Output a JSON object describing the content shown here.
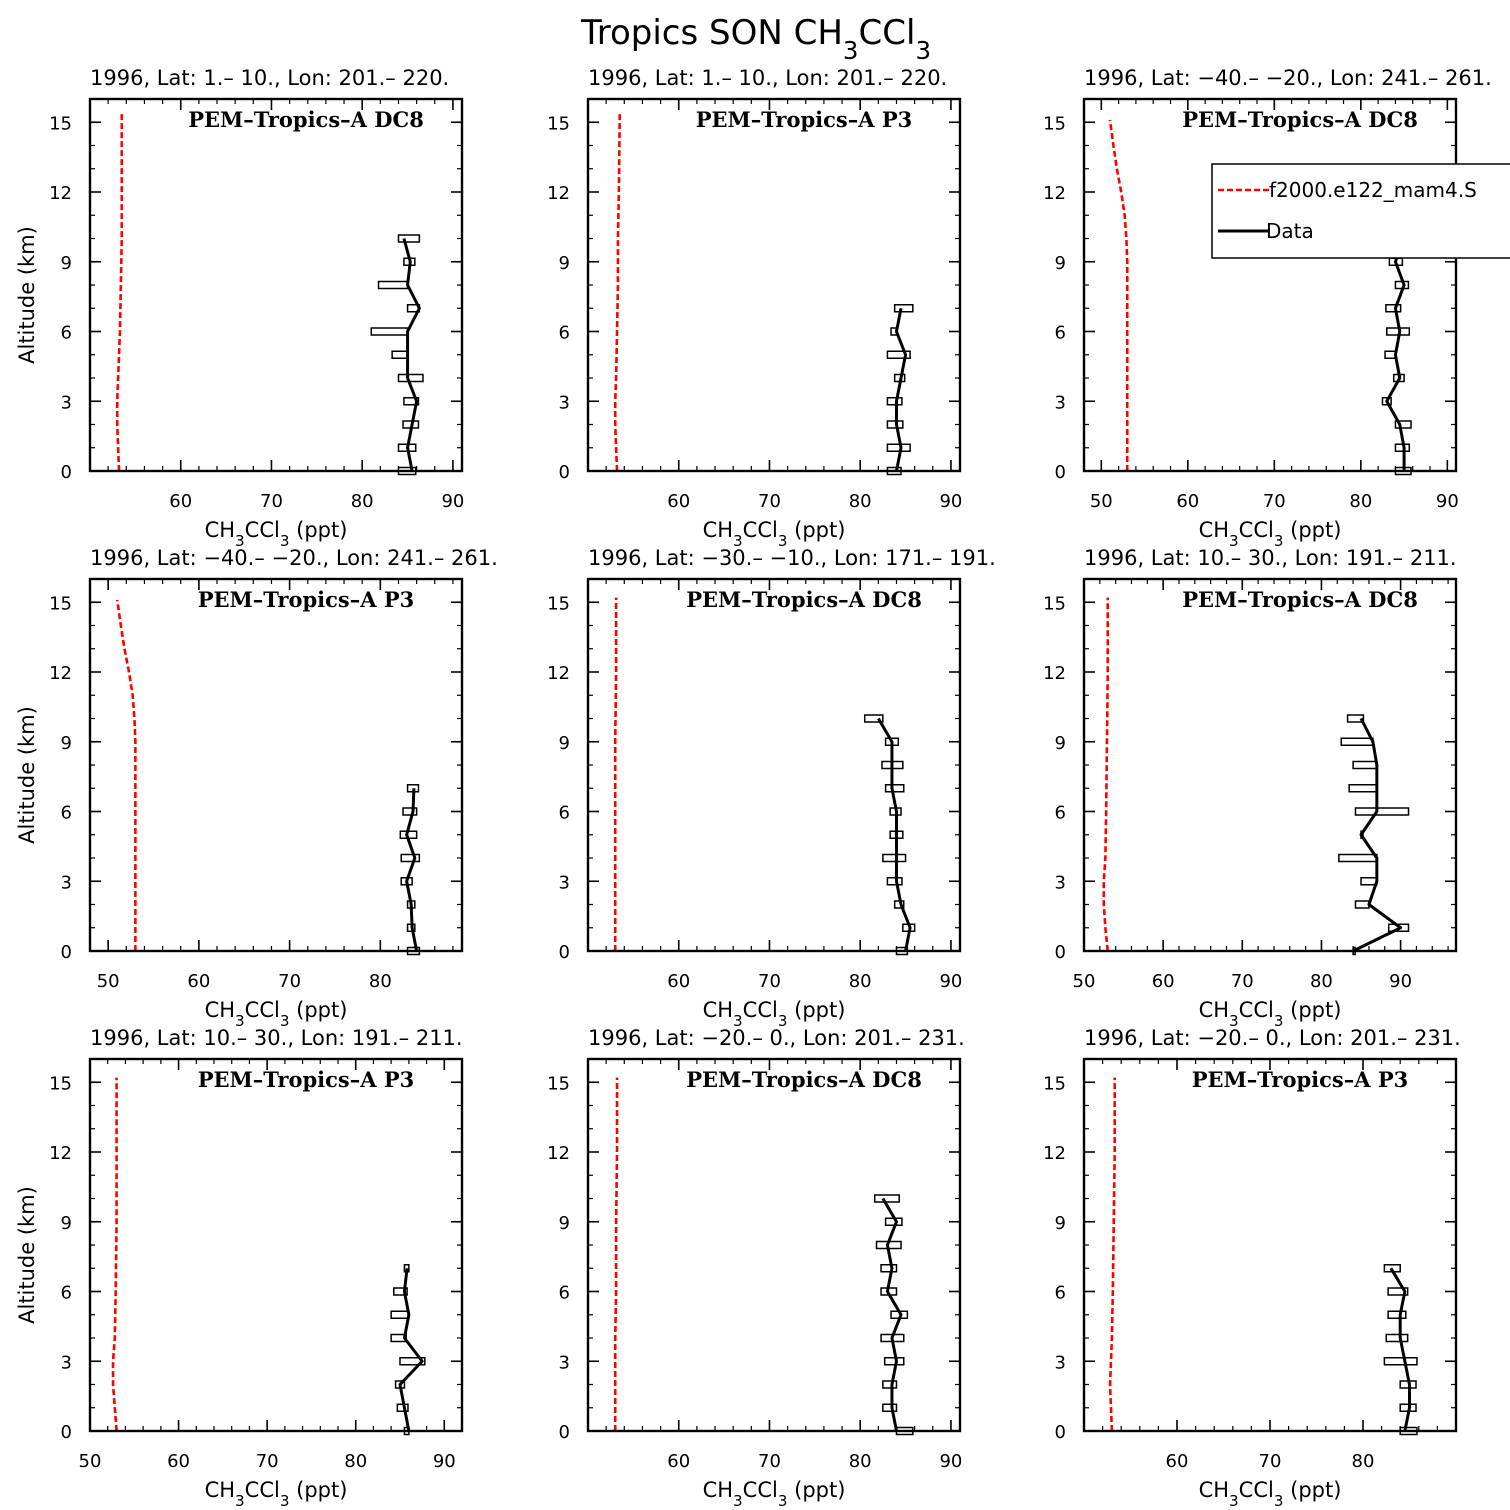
{
  "title": "Tropics SON CH3CCl3",
  "chart_data": {
    "type": "line",
    "legend": {
      "placement": "top-right",
      "entries": [
        "f2000.e122_mam4.S",
        "Data"
      ],
      "colors": [
        "#ff0000",
        "#000000"
      ]
    },
    "panels": [
      {
        "title": "1996, Lat: 1.– 10., Lon: 201.– 220.",
        "campaign": "PEM–Tropics–A DC8",
        "xlim": [
          50,
          91
        ],
        "xticks": [
          60,
          70,
          80,
          90
        ],
        "xlabel": "CH3CCl3 (ppt)",
        "ylabel": "Altitude (km)",
        "ylim": [
          0,
          16
        ],
        "yticks": [
          0,
          3,
          6,
          9,
          12,
          15
        ],
        "model": {
          "alt": [
            0,
            1,
            2,
            3,
            4,
            5,
            6,
            8,
            10,
            12,
            15.4
          ],
          "val": [
            53.2,
            53.1,
            53.0,
            53.0,
            53.1,
            53.2,
            53.3,
            53.4,
            53.5,
            53.5,
            53.5
          ]
        },
        "obs": {
          "alt": [
            0,
            1,
            2,
            3,
            4,
            5,
            6,
            7,
            8,
            9,
            10
          ],
          "val": [
            85.5,
            85.0,
            85.5,
            86.0,
            85.0,
            85.0,
            85.0,
            86.3,
            85.0,
            85.3,
            84.6
          ],
          "lo": [
            84.0,
            84.0,
            84.5,
            84.6,
            84.0,
            83.3,
            81.0,
            85.0,
            81.8,
            84.6,
            84.0
          ],
          "hi": [
            85.9,
            85.9,
            86.2,
            86.2,
            86.7,
            85.0,
            85.0,
            86.3,
            85.0,
            85.8,
            86.3
          ]
        }
      },
      {
        "title": "1996, Lat: 1.– 10., Lon: 201.– 220.",
        "campaign": "PEM–Tropics–A P3",
        "xlim": [
          50,
          91
        ],
        "xticks": [
          60,
          70,
          80,
          90
        ],
        "xlabel": "CH3CCl3 (ppt)",
        "ylabel": "",
        "ylim": [
          0,
          16
        ],
        "yticks": [
          0,
          3,
          6,
          9,
          12,
          15
        ],
        "model": {
          "alt": [
            0,
            1,
            2,
            3,
            4,
            6,
            8,
            10,
            12,
            15.4
          ],
          "val": [
            53.2,
            53.1,
            53.0,
            53.0,
            53.1,
            53.2,
            53.3,
            53.3,
            53.4,
            53.5
          ]
        },
        "obs": {
          "alt": [
            0,
            1,
            2,
            3,
            4,
            5,
            6,
            7
          ],
          "val": [
            84.0,
            84.5,
            84.0,
            84.0,
            84.5,
            85.0,
            84.0,
            84.5
          ],
          "lo": [
            83.0,
            83.0,
            83.0,
            83.0,
            83.8,
            83.0,
            83.4,
            83.8
          ],
          "hi": [
            84.5,
            85.5,
            84.7,
            84.6,
            84.9,
            85.5,
            84.0,
            85.8
          ]
        }
      },
      {
        "title": "1996, Lat: −40.– −20., Lon: 241.– 261.",
        "campaign": "PEM–Tropics–A DC8",
        "xlim": [
          48,
          91
        ],
        "xticks": [
          50,
          60,
          70,
          80,
          90
        ],
        "xlabel": "CH3CCl3 (ppt)",
        "ylabel": "",
        "ylim": [
          0,
          16
        ],
        "yticks": [
          0,
          3,
          6,
          9,
          12,
          15
        ],
        "model": {
          "alt": [
            0,
            3,
            6,
            9,
            10,
            11,
            12,
            13,
            14,
            15.1
          ],
          "val": [
            53.0,
            53.0,
            53.0,
            53.0,
            52.9,
            52.7,
            52.3,
            51.8,
            51.4,
            51.0
          ]
        },
        "obs": {
          "alt": [
            0,
            1,
            2,
            3,
            4,
            5,
            6,
            7,
            8,
            9,
            10
          ],
          "val": [
            85.0,
            85.0,
            84.5,
            83.0,
            84.5,
            84.0,
            84.5,
            84.0,
            85.0,
            84.0,
            85.0
          ],
          "lo": [
            84.0,
            84.0,
            84.0,
            82.5,
            83.8,
            82.8,
            83.0,
            82.9,
            84.0,
            83.3,
            82.9
          ],
          "hi": [
            85.8,
            85.6,
            85.8,
            83.5,
            85.0,
            84.0,
            85.6,
            84.6,
            85.5,
            84.8,
            85.1
          ]
        }
      },
      {
        "title": "1996, Lat: −40.– −20., Lon: 241.– 261.",
        "campaign": "PEM–Tropics–A P3",
        "xlim": [
          48,
          89
        ],
        "xticks": [
          50,
          60,
          70,
          80
        ],
        "xlabel": "CH3CCl3 (ppt)",
        "ylabel": "Altitude (km)",
        "ylim": [
          0,
          16
        ],
        "yticks": [
          0,
          3,
          6,
          9,
          12,
          15
        ],
        "model": {
          "alt": [
            0,
            3,
            6,
            9,
            10,
            11,
            12,
            13,
            14,
            15.1
          ],
          "val": [
            53.0,
            53.0,
            53.0,
            53.0,
            52.9,
            52.7,
            52.3,
            51.8,
            51.4,
            51.0
          ]
        },
        "obs": {
          "alt": [
            0,
            1,
            2,
            3,
            4,
            5,
            6,
            7
          ],
          "val": [
            84.0,
            83.5,
            83.4,
            82.9,
            83.8,
            82.9,
            83.6,
            83.7
          ],
          "lo": [
            83.0,
            83.0,
            83.0,
            82.3,
            82.3,
            82.2,
            82.5,
            83.0
          ],
          "hi": [
            84.3,
            83.8,
            83.8,
            83.5,
            84.3,
            84.0,
            84.0,
            84.2
          ]
        }
      },
      {
        "title": "1996, Lat: −30.– −10., Lon: 171.– 191.",
        "campaign": "PEM–Tropics–A DC8",
        "xlim": [
          50,
          91
        ],
        "xticks": [
          60,
          70,
          80,
          90
        ],
        "xlabel": "CH3CCl3 (ppt)",
        "ylabel": "",
        "ylim": [
          0,
          16
        ],
        "yticks": [
          0,
          3,
          6,
          9,
          12,
          15
        ],
        "model": {
          "alt": [
            0,
            2,
            4,
            6,
            9,
            12,
            15.2
          ],
          "val": [
            53.0,
            53.0,
            53.0,
            53.0,
            53.0,
            53.1,
            53.1
          ]
        },
        "obs": {
          "alt": [
            0,
            1,
            2,
            3,
            4,
            5,
            6,
            7,
            8,
            9,
            10
          ],
          "val": [
            85.0,
            85.5,
            84.5,
            84.0,
            84.0,
            84.0,
            84.0,
            83.5,
            83.5,
            83.5,
            82.0
          ],
          "lo": [
            84.0,
            84.7,
            83.8,
            83.0,
            82.5,
            83.3,
            83.3,
            82.8,
            82.4,
            82.8,
            80.5
          ],
          "hi": [
            85.2,
            86.0,
            84.8,
            84.6,
            85.0,
            84.7,
            84.5,
            84.8,
            84.7,
            84.2,
            82.5
          ]
        }
      },
      {
        "title": "1996, Lat: 10.– 30., Lon: 191.– 211.",
        "campaign": "PEM–Tropics–A DC8",
        "xlim": [
          50,
          97
        ],
        "xticks": [
          50,
          60,
          70,
          80,
          90
        ],
        "xlabel": "CH3CCl3 (ppt)",
        "ylabel": "",
        "ylim": [
          0,
          16
        ],
        "yticks": [
          0,
          3,
          6,
          9,
          12,
          15
        ],
        "model": {
          "alt": [
            0,
            1,
            2,
            3,
            4,
            6,
            9,
            12,
            15.2
          ],
          "val": [
            53.0,
            52.7,
            52.5,
            52.5,
            52.7,
            52.8,
            52.9,
            53.0,
            53.0
          ]
        },
        "obs": {
          "alt": [
            0,
            1,
            2,
            3,
            4,
            5,
            6,
            7,
            8,
            9,
            10
          ],
          "val": [
            84.0,
            90.0,
            86.0,
            87.0,
            87.0,
            85.0,
            87.0,
            87.0,
            87.0,
            86.5,
            85.0
          ],
          "lo": [
            84.0,
            88.5,
            84.3,
            85.0,
            82.2,
            85.0,
            84.3,
            83.5,
            84.0,
            82.5,
            83.3
          ],
          "hi": [
            84.0,
            91.0,
            86.0,
            87.0,
            87.0,
            85.0,
            91.0,
            87.0,
            87.0,
            86.5,
            85.3
          ]
        }
      },
      {
        "title": "1996, Lat: 10.– 30., Lon: 191.– 211.",
        "campaign": "PEM–Tropics–A P3",
        "xlim": [
          50,
          92
        ],
        "xticks": [
          50,
          60,
          70,
          80,
          90
        ],
        "xlabel": "CH3CCl3 (ppt)",
        "ylabel": "Altitude (km)",
        "ylim": [
          0,
          16
        ],
        "yticks": [
          0,
          3,
          6,
          9,
          12,
          15
        ],
        "model": {
          "alt": [
            0,
            1,
            2,
            3,
            4,
            6,
            9,
            12,
            15.2
          ],
          "val": [
            53.0,
            52.8,
            52.6,
            52.6,
            52.8,
            52.9,
            53.0,
            53.0,
            53.0
          ]
        },
        "obs": {
          "alt": [
            0,
            1,
            2,
            3,
            4,
            5,
            6,
            7
          ],
          "val": [
            86.0,
            85.5,
            85.0,
            87.5,
            85.5,
            86.0,
            85.5,
            85.8
          ],
          "lo": [
            85.5,
            84.7,
            84.5,
            85.0,
            84.0,
            84.0,
            84.3,
            85.5
          ],
          "hi": [
            86.0,
            85.9,
            85.5,
            87.8,
            85.7,
            86.0,
            85.8,
            86.0
          ]
        }
      },
      {
        "title": "1996, Lat: −20.– 0., Lon: 201.– 231.",
        "campaign": "PEM–Tropics–A DC8",
        "xlim": [
          50,
          91
        ],
        "xticks": [
          60,
          70,
          80,
          90
        ],
        "xlabel": "CH3CCl3 (ppt)",
        "ylabel": "",
        "ylim": [
          0,
          16
        ],
        "yticks": [
          0,
          3,
          6,
          9,
          12,
          15
        ],
        "model": {
          "alt": [
            0,
            2,
            4,
            6,
            9,
            12,
            15.2
          ],
          "val": [
            53.0,
            53.0,
            53.0,
            53.1,
            53.1,
            53.2,
            53.2
          ]
        },
        "obs": {
          "alt": [
            0,
            1,
            2,
            3,
            4,
            5,
            6,
            7,
            8,
            9,
            10
          ],
          "val": [
            84.0,
            83.5,
            83.5,
            84.0,
            83.5,
            84.5,
            83.0,
            83.5,
            83.0,
            84.0,
            82.5
          ],
          "lo": [
            84.0,
            82.5,
            82.5,
            82.7,
            82.3,
            83.4,
            82.3,
            82.3,
            81.8,
            82.8,
            81.6
          ],
          "hi": [
            85.8,
            84.0,
            84.0,
            84.8,
            84.8,
            85.2,
            84.0,
            84.0,
            84.5,
            84.6,
            84.3
          ]
        }
      },
      {
        "title": "1996, Lat: −20.– 0., Lon: 201.– 231.",
        "campaign": "PEM–Tropics–A P3",
        "xlim": [
          50,
          90
        ],
        "xticks": [
          60,
          70,
          80
        ],
        "xlabel": "CH3CCl3 (ppt)",
        "ylabel": "",
        "ylim": [
          0,
          16
        ],
        "yticks": [
          0,
          3,
          6,
          9,
          12,
          15
        ],
        "model": {
          "alt": [
            0,
            1,
            2,
            3,
            4,
            6,
            9,
            12,
            15.2
          ],
          "val": [
            53.0,
            52.9,
            52.8,
            52.9,
            53.0,
            53.1,
            53.2,
            53.3,
            53.3
          ]
        },
        "obs": {
          "alt": [
            0,
            1,
            2,
            3,
            4,
            5,
            6,
            7
          ],
          "val": [
            84.5,
            85.0,
            85.0,
            84.5,
            84.0,
            84.0,
            84.5,
            83.0
          ],
          "lo": [
            84.0,
            84.0,
            84.0,
            82.3,
            82.5,
            82.7,
            82.7,
            82.3
          ],
          "hi": [
            85.8,
            85.7,
            85.7,
            85.8,
            84.8,
            84.6,
            84.8,
            84.0
          ]
        }
      }
    ]
  }
}
